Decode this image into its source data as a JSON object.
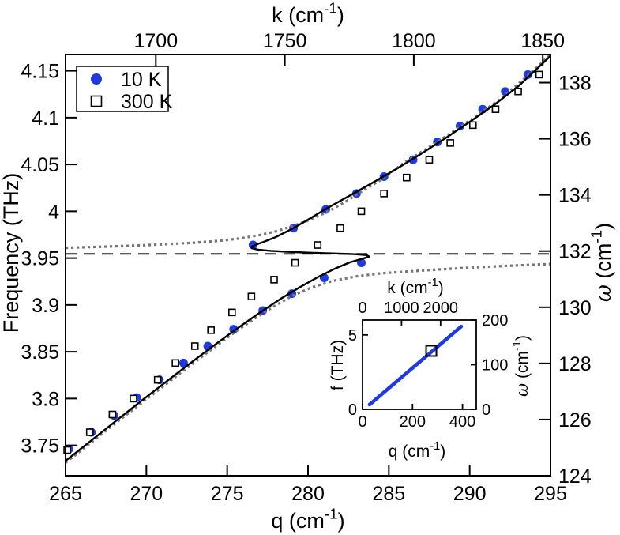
{
  "colors": {
    "accent_blue": "#1f3be0",
    "dotted_gray": "#767676",
    "dashed_dark": "#222222",
    "black": "#000000",
    "background": "#ffffff"
  },
  "chart_data": [
    {
      "id": "main",
      "type": "scatter",
      "title": "",
      "xlabel_parts": [
        {
          "t": "q (cm"
        },
        {
          "t": "-1",
          "sup": true
        },
        {
          "t": ")"
        }
      ],
      "top_xlabel_parts": [
        {
          "t": "k (cm"
        },
        {
          "t": "-1",
          "sup": true
        },
        {
          "t": ")"
        }
      ],
      "ylabel_parts": [
        {
          "t": "Frequency (THz)"
        }
      ],
      "right_ylabel_parts": [
        {
          "t": "ω",
          "italic": true
        },
        {
          "t": " (cm"
        },
        {
          "t": "-1",
          "sup": true
        },
        {
          "t": ")"
        }
      ],
      "x_axis": {
        "range": [
          265,
          295
        ],
        "ticks": [
          265,
          270,
          275,
          280,
          285,
          290,
          295
        ]
      },
      "top_axis": {
        "range": [
          1665,
          1853
        ],
        "ticks": [
          1700,
          1750,
          1800,
          1850
        ]
      },
      "y_axis": {
        "range": [
          3.7176,
          4.1674
        ],
        "tick_labels": [
          "3.75",
          "3.8",
          "3.85",
          "3.9",
          "3.95",
          "4",
          "4.05",
          "4.1",
          "4.15"
        ]
      },
      "right_axis": {
        "range": [
          124,
          139
        ],
        "ticks": [
          124,
          126,
          128,
          130,
          132,
          134,
          136,
          138
        ]
      },
      "legend": {
        "position": "top-left",
        "items": [
          {
            "label": "10 K",
            "marker": "filled-circle"
          },
          {
            "label": "300 K",
            "marker": "open-square"
          }
        ]
      },
      "series": [
        {
          "name": "10 K",
          "marker": "filled-circle",
          "points": [
            [
              265.2,
              3.746
            ],
            [
              266.6,
              3.764
            ],
            [
              268.0,
              3.782
            ],
            [
              269.4,
              3.801
            ],
            [
              270.8,
              3.82
            ],
            [
              272.3,
              3.838
            ],
            [
              273.8,
              3.856
            ],
            [
              275.4,
              3.874
            ],
            [
              277.2,
              3.894
            ],
            [
              279.0,
              3.912
            ],
            [
              281.0,
              3.929
            ],
            [
              283.3,
              3.945
            ],
            [
              276.6,
              3.964
            ],
            [
              279.1,
              3.982
            ],
            [
              281.1,
              4.002
            ],
            [
              283.0,
              4.019
            ],
            [
              284.7,
              4.037
            ],
            [
              286.5,
              4.055
            ],
            [
              288.0,
              4.074
            ],
            [
              289.4,
              4.091
            ],
            [
              290.8,
              4.109
            ],
            [
              292.2,
              4.128
            ],
            [
              293.6,
              4.146
            ]
          ]
        },
        {
          "name": "300 K",
          "marker": "open-square",
          "points": [
            [
              265.1,
              3.745
            ],
            [
              266.5,
              3.764
            ],
            [
              267.9,
              3.783
            ],
            [
              269.2,
              3.8
            ],
            [
              270.7,
              3.82
            ],
            [
              271.8,
              3.838
            ],
            [
              273.0,
              3.856
            ],
            [
              274.0,
              3.873
            ],
            [
              275.3,
              3.892
            ],
            [
              276.5,
              3.909
            ],
            [
              277.9,
              3.927
            ],
            [
              279.2,
              3.945
            ],
            [
              280.6,
              3.964
            ],
            [
              282.0,
              3.982
            ],
            [
              283.3,
              4.0
            ],
            [
              284.7,
              4.019
            ],
            [
              286.1,
              4.036
            ],
            [
              287.5,
              4.055
            ],
            [
              288.8,
              4.073
            ],
            [
              290.2,
              4.092
            ],
            [
              291.6,
              4.109
            ],
            [
              293.0,
              4.128
            ],
            [
              294.3,
              4.146
            ]
          ]
        }
      ],
      "curves": [
        {
          "name": "coupled-fit-solid",
          "style": "solid",
          "points": [
            [
              265,
              3.7335
            ],
            [
              266.5,
              3.754
            ],
            [
              268,
              3.7745
            ],
            [
              269.5,
              3.795
            ],
            [
              271,
              3.815
            ],
            [
              272.5,
              3.835
            ],
            [
              274,
              3.8545
            ],
            [
              275.5,
              3.8735
            ],
            [
              277,
              3.8915
            ],
            [
              278.3,
              3.9065
            ],
            [
              279.5,
              3.919
            ],
            [
              280.7,
              3.9305
            ],
            [
              281.7,
              3.939
            ],
            [
              282.6,
              3.9455
            ],
            [
              283.3,
              3.949
            ],
            [
              283.8,
              3.9515
            ],
            [
              283.6,
              3.9533
            ],
            [
              282.8,
              3.9542
            ],
            [
              281.5,
              3.955
            ],
            [
              280,
              3.9558
            ],
            [
              278.7,
              3.9568
            ],
            [
              277.7,
              3.9578
            ],
            [
              276.9,
              3.959
            ],
            [
              276.55,
              3.9605
            ],
            [
              276.5,
              3.962
            ],
            [
              276.8,
              3.9645
            ],
            [
              277.2,
              3.967
            ],
            [
              278,
              3.9725
            ],
            [
              279.1,
              3.982
            ],
            [
              280.1,
              3.992
            ],
            [
              281.1,
              4.0025
            ],
            [
              282.5,
              4.016
            ],
            [
              284,
              4.0305
            ],
            [
              285.5,
              4.0455
            ],
            [
              287,
              4.0615
            ],
            [
              288.5,
              4.078
            ],
            [
              290,
              4.0955
            ],
            [
              291.5,
              4.1135
            ],
            [
              293,
              4.1335
            ],
            [
              294,
              4.1495
            ],
            [
              295,
              4.166
            ]
          ]
        },
        {
          "name": "upper-branch-dotted",
          "style": "dotted",
          "points": [
            [
              265,
              3.961
            ],
            [
              267,
              3.962
            ],
            [
              269,
              3.9632
            ],
            [
              271,
              3.9647
            ],
            [
              273,
              3.9665
            ],
            [
              274.5,
              3.9685
            ],
            [
              275.8,
              3.971
            ],
            [
              277,
              3.9745
            ],
            [
              278.1,
              3.979
            ],
            [
              279.2,
              3.985
            ],
            [
              280.2,
              3.9915
            ],
            [
              281.2,
              3.9995
            ],
            [
              282.3,
              4.01
            ],
            [
              283.3,
              4.021
            ],
            [
              284.5,
              4.0335
            ],
            [
              286,
              4.0525
            ],
            [
              288,
              4.074
            ],
            [
              290,
              4.097
            ],
            [
              292,
              4.121
            ],
            [
              294,
              4.151
            ],
            [
              295,
              4.1675
            ]
          ]
        },
        {
          "name": "lower-branch-dotted",
          "style": "dotted",
          "points": [
            [
              265,
              3.7315
            ],
            [
              266.5,
              3.752
            ],
            [
              268,
              3.7725
            ],
            [
              269.5,
              3.7925
            ],
            [
              271,
              3.8125
            ],
            [
              272.5,
              3.8325
            ],
            [
              274,
              3.852
            ],
            [
              275.4,
              3.87
            ],
            [
              276.7,
              3.8855
            ],
            [
              277.9,
              3.8985
            ],
            [
              279,
              3.9095
            ],
            [
              280.2,
              3.9185
            ],
            [
              281.5,
              3.9255
            ],
            [
              283,
              3.9305
            ],
            [
              284.5,
              3.9337
            ],
            [
              286,
              3.9355
            ],
            [
              288,
              3.9378
            ],
            [
              290,
              3.9398
            ],
            [
              292,
              3.9415
            ],
            [
              295,
              3.9437
            ]
          ]
        },
        {
          "name": "bare-phonon-dashed",
          "style": "dashed",
          "points": [
            [
              265,
              3.9545
            ],
            [
              295,
              3.9545
            ]
          ]
        }
      ]
    },
    {
      "id": "inset",
      "type": "line",
      "xlabel_parts": [
        {
          "t": "q (cm"
        },
        {
          "t": "-1",
          "sup": true
        },
        {
          "t": ")"
        }
      ],
      "top_xlabel_parts": [
        {
          "t": "k (cm"
        },
        {
          "t": "-1",
          "sup": true
        },
        {
          "t": ")"
        }
      ],
      "ylabel_parts": [
        {
          "t": "f (THz)"
        }
      ],
      "right_ylabel_parts": [
        {
          "t": "ω",
          "italic": true
        },
        {
          "t": " (cm"
        },
        {
          "t": "-1",
          "sup": true
        },
        {
          "t": ")"
        }
      ],
      "x_axis": {
        "range": [
          0,
          455
        ],
        "ticks": [
          0,
          200,
          400
        ]
      },
      "top_axis": {
        "range": [
          0,
          2915
        ],
        "ticks": [
          0,
          1000,
          2000
        ]
      },
      "y_axis": {
        "range": [
          0,
          6
        ],
        "ticks": [
          0,
          5
        ]
      },
      "right_axis": {
        "range": [
          0,
          200
        ],
        "ticks": [
          0,
          100,
          200
        ]
      },
      "line": {
        "name": "light-line",
        "points": [
          [
            28,
            0.32
          ],
          [
            395,
            5.57
          ]
        ]
      },
      "marker_point": {
        "name": "selected-point",
        "marker": "open-square",
        "point": [
          275,
          3.93
        ]
      }
    }
  ]
}
